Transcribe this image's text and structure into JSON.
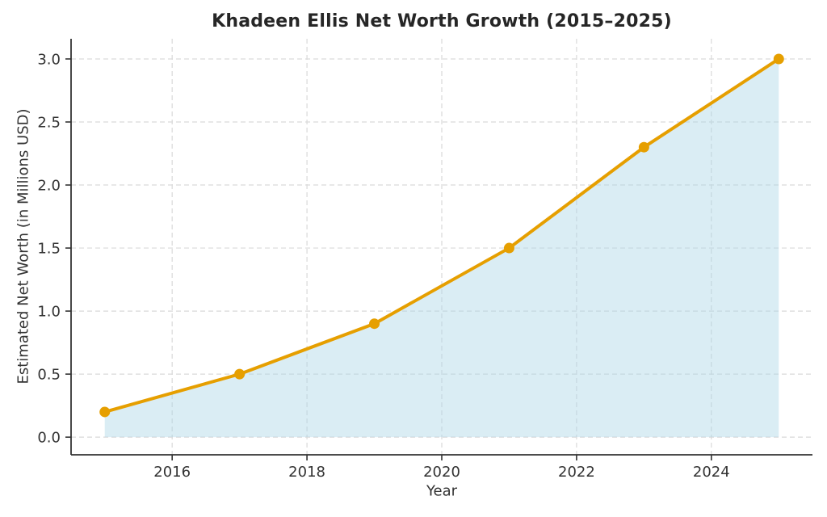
{
  "title": "Khadeen Ellis Net Worth Growth (2015–2025)",
  "chart_data": {
    "type": "line",
    "title": "Khadeen Ellis Net Worth Growth (2015–2025)",
    "xlabel": "Year",
    "ylabel": "Estimated Net Worth (in Millions USD)",
    "series": [
      {
        "name": "Estimated Net Worth",
        "x": [
          2015,
          2017,
          2019,
          2021,
          2023,
          2025
        ],
        "values": [
          0.2,
          0.5,
          0.9,
          1.5,
          2.3,
          3.0
        ]
      }
    ],
    "xlim": [
      2014.5,
      2025.5
    ],
    "ylim": [
      -0.14,
      3.16
    ],
    "xticks": [
      2016,
      2018,
      2020,
      2022,
      2024
    ],
    "yticks": [
      0.0,
      0.5,
      1.0,
      1.5,
      2.0,
      2.5,
      3.0
    ],
    "grid": true,
    "grid_style": "dashed",
    "legend": false,
    "area_fill": true,
    "marker": "circle",
    "colors": {
      "line": "#E69F00",
      "marker": "#E69F00",
      "fill": "rgba(173, 216, 230, 0.45)",
      "grid": "#d9d9d9",
      "spine": "#333333",
      "tick_text": "#333333",
      "title_text": "#262626",
      "background": "#ffffff"
    }
  }
}
